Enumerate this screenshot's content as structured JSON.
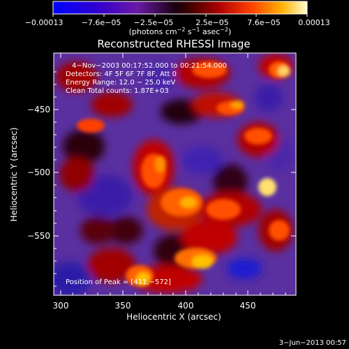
{
  "colorbar": {
    "ticks": [
      "−0.00013",
      "−7.6e−05",
      "−2.5e−05",
      "2.5e−05",
      "7.6e−05",
      "0.00013"
    ],
    "unit_prefix": "(photons cm",
    "unit_exp1": "−2",
    "unit_mid": " s",
    "unit_exp2": "−1",
    "unit_mid2": " asec",
    "unit_exp3": "−2",
    "unit_suffix": ")"
  },
  "title": "Reconstructed RHESSI Image",
  "annotation": {
    "time_range": "4−Nov−2003 00:17:52.000 to 00:21:54.000",
    "detectors": "Detectors: 4F 5F 6F 7F 8F, Att 0",
    "energy_range": "Energy Range: 12.0 − 25.0 keV",
    "clean_counts": "Clean     Total counts: 1.87E+03",
    "peak": "Position of Peak = [411,−572]"
  },
  "axes": {
    "xlabel": "Heliocentric X (arcsec)",
    "ylabel": "Heliocentric Y (arcsec)",
    "xticks": [
      "300",
      "350",
      "400",
      "450"
    ],
    "yticks": [
      "−450",
      "−500",
      "−550"
    ]
  },
  "footer": "3−Jun−2013 00:57"
}
